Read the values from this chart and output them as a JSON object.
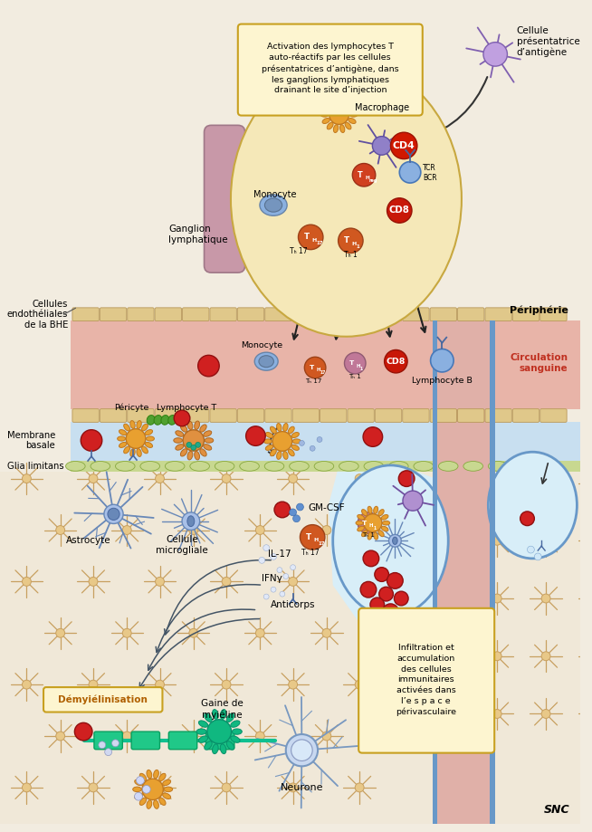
{
  "fig_width": 6.54,
  "fig_height": 9.19,
  "dpi": 100,
  "bg_color": "#f2ece0",
  "blood_color": "#e8b4a8",
  "membrane_color": "#c8dff0",
  "endo_cell_color": "#e0c88a",
  "endo_border_color": "#b8985a",
  "glia_color": "#c8d890",
  "glia_border": "#88a840",
  "lymph_color": "#f5e8b8",
  "lymph_border": "#c8a840",
  "vessel_fill": "#c8e0f5",
  "vessel_wall": "#6898c8",
  "perivascular_fill": "#d8eef8",
  "box_fill": "#fdf5d0",
  "box_border": "#c8a020",
  "labels": {
    "cellule_presentatrice": "Cellule\nprésentatrice\nd’antigène",
    "macrophage": "Macrophage",
    "monocyte_top": "Monocyte",
    "ganglion": "Ganglion\nlymphatique",
    "cellules_endotheliales": "Cellules\nendothéliales\nde la BHE",
    "peripherie": "Périphérie",
    "circulation_sanguine": "Circulation\nsanguine",
    "pericyte": "Péricyte",
    "lymphocyte_t": "Lymphocyte T",
    "monocyte_mid": "Monocyte",
    "lymphocyte_b": "Lymphocyte B",
    "membrane_basale": "Membrane\nbasale",
    "glia_limitans": "Glia limitans",
    "astrocyte": "Astrocyte",
    "cellule_microgliale": "Cellule\nmicrogliale",
    "gm_csf": "GM-CSF",
    "il17": "IL-17",
    "ifny": "IFNγ",
    "anticorps": "Anticorps",
    "demyelinisation": "Démyiélinisation",
    "gaine_myeline": "Gaine de\nmyiéline",
    "neurone": "Neurone",
    "snc": "SNC",
    "infiltration_box": "Infiltration et\naccumulation\ndes cellules\nimmunitaires\nactivées dans\nl’e s p a c e\npérivasculaire",
    "activation_box": "Activation des lymphocytes T\nauto-réactifs par les cellules\nprésentatrices d’antigène, dans\nles ganglions lymphatiques\ndrainant le site d’injection"
  }
}
